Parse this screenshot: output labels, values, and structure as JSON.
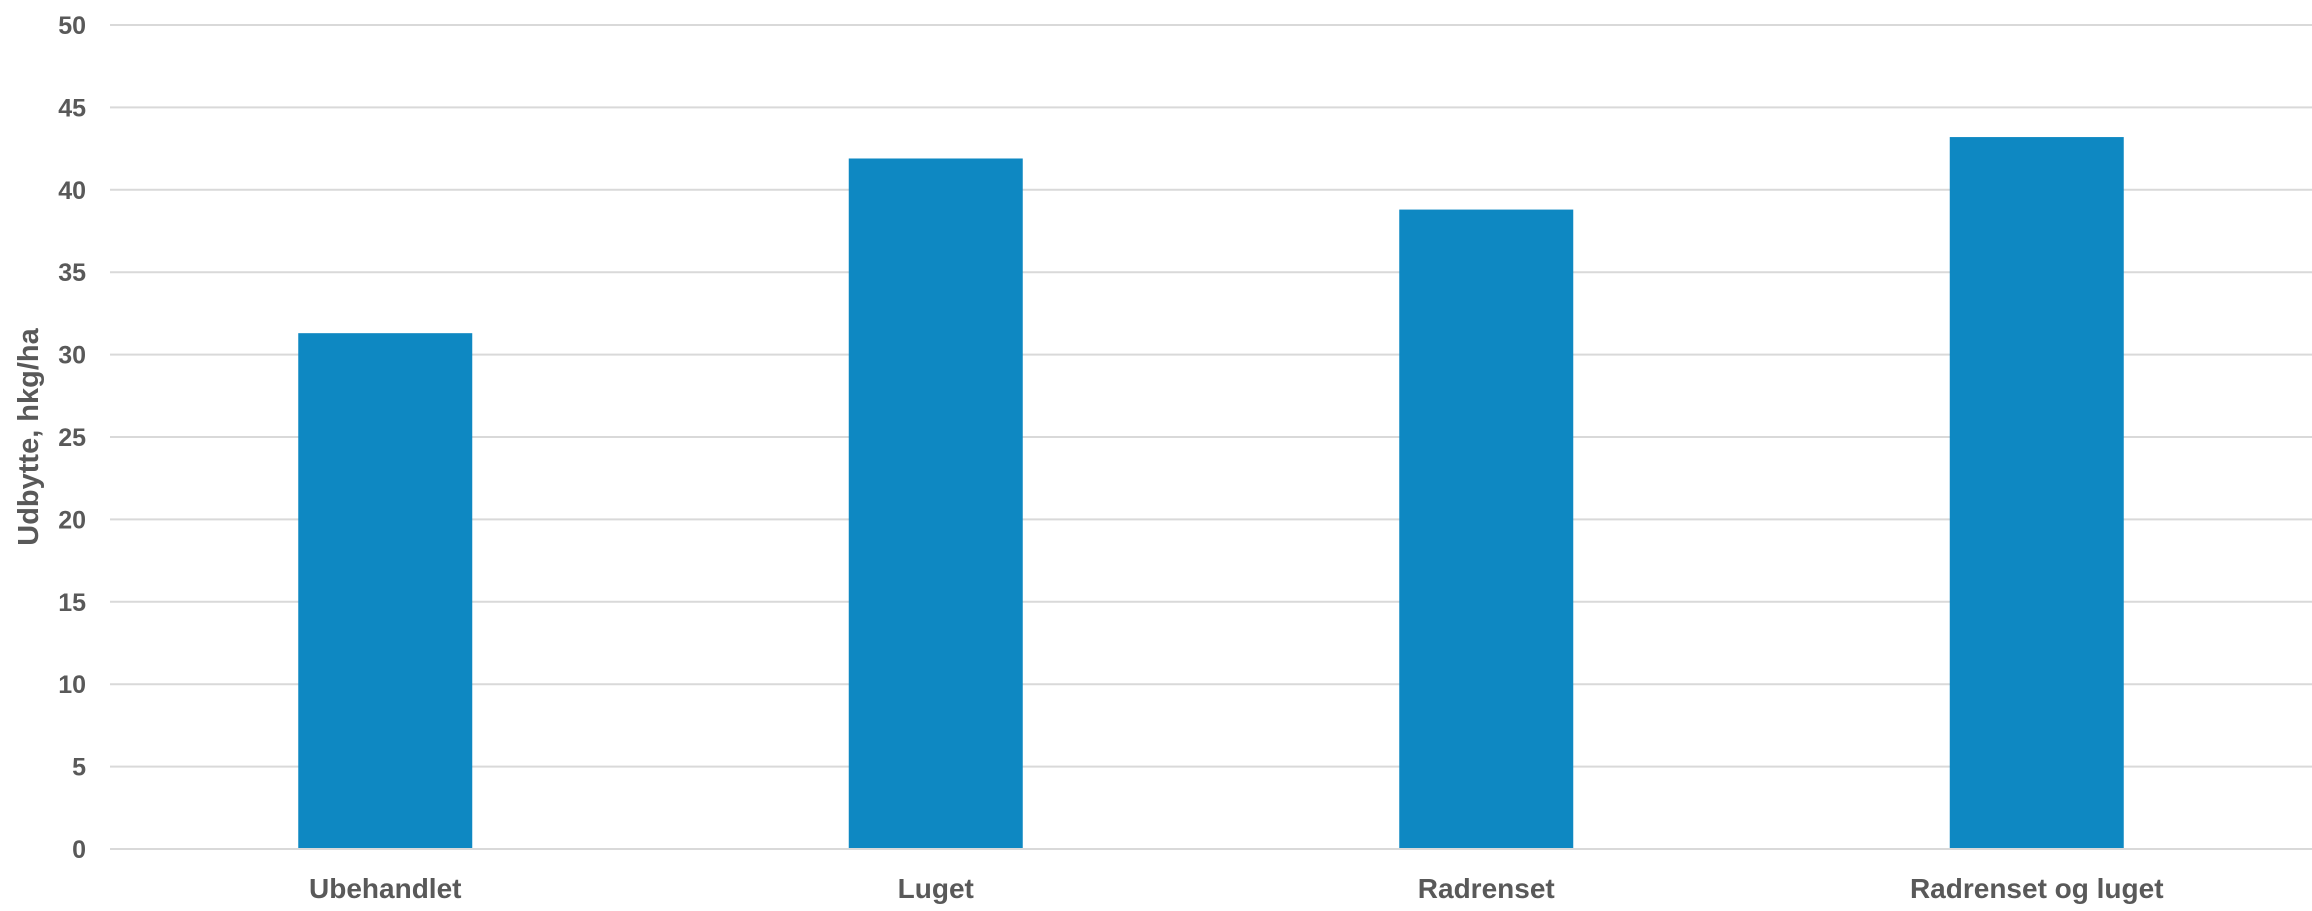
{
  "chart_data": {
    "type": "bar",
    "title": "",
    "xlabel": "",
    "ylabel": "Udbytte, hkg/ha",
    "categories": [
      "Ubehandlet",
      "Luget",
      "Radrenset",
      "Radrenset og luget"
    ],
    "values": [
      31.3,
      41.9,
      38.8,
      43.2
    ],
    "ylim": [
      0,
      50
    ],
    "yticks": [
      0,
      5,
      10,
      15,
      20,
      25,
      30,
      35,
      40,
      45,
      50
    ],
    "grid": true,
    "legend": "none",
    "colors": {
      "bar": "#0E88C2",
      "grid": "#D9D9D9",
      "text": "#595959"
    }
  }
}
